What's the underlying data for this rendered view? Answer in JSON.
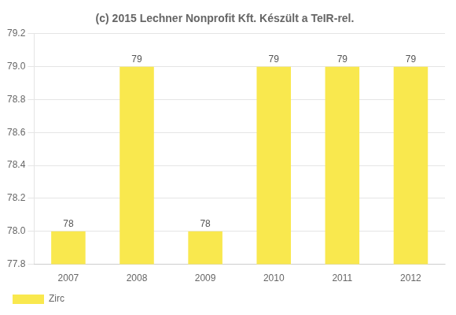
{
  "chart_data": {
    "type": "bar",
    "title": "(c) 2015 Lechner Nonprofit Kft. Készült a TeIR-rel.",
    "categories": [
      2007,
      2008,
      2009,
      2010,
      2011,
      2012
    ],
    "series": [
      {
        "name": "Zirc",
        "color": "#F9E84E",
        "values": [
          78,
          79,
          78,
          79,
          79,
          79
        ]
      }
    ],
    "ylim": [
      77.8,
      79.2
    ],
    "yticks": [
      77.8,
      {
        "value": 78.0,
        "label": "78.0"
      },
      78.2,
      78.4,
      78.6,
      78.8,
      {
        "value": 79.0,
        "label": "79.0"
      },
      79.2
    ],
    "grid": true,
    "legend": "lower left",
    "data_labels": true
  }
}
